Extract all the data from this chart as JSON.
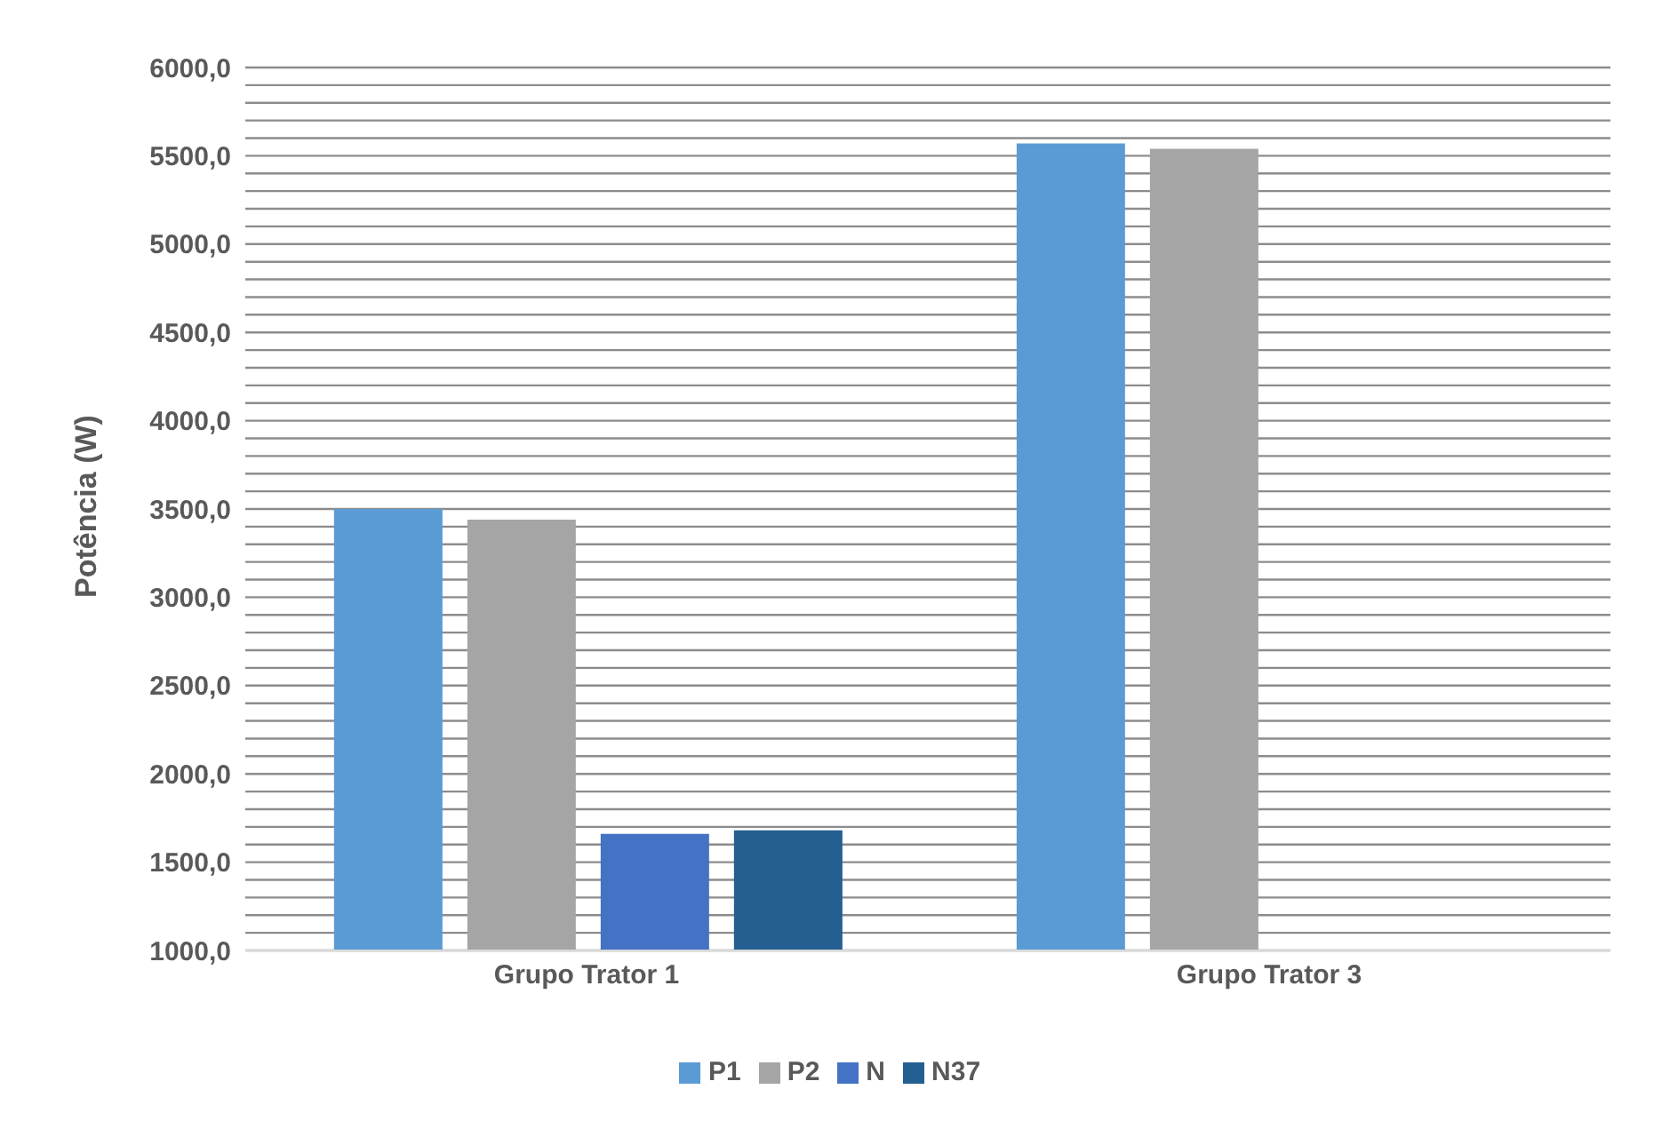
{
  "chart_data": {
    "type": "bar",
    "ylabel": "Potência (W)",
    "categories": [
      "Grupo Trator 1",
      "Grupo Trator 3"
    ],
    "series": [
      {
        "name": "P1",
        "color": "#5b9bd5",
        "values": [
          3500,
          5570
        ]
      },
      {
        "name": "P2",
        "color": "#a5a5a5",
        "values": [
          3440,
          5540
        ]
      },
      {
        "name": "N",
        "color": "#4472c4",
        "values": [
          1660,
          1000
        ]
      },
      {
        "name": "N37",
        "color": "#255e91",
        "values": [
          1680,
          1000
        ]
      }
    ],
    "ylim": [
      1000,
      6000
    ],
    "yticks": [
      {
        "value": 1000,
        "label": "1000,0"
      },
      {
        "value": 1100,
        "label": null
      },
      {
        "value": 1200,
        "label": null
      },
      {
        "value": 1300,
        "label": null
      },
      {
        "value": 1400,
        "label": null
      },
      {
        "value": 1500,
        "label": "1500,0"
      },
      {
        "value": 1600,
        "label": null
      },
      {
        "value": 1700,
        "label": null
      },
      {
        "value": 1800,
        "label": null
      },
      {
        "value": 1900,
        "label": null
      },
      {
        "value": 2000,
        "label": "2000,0"
      },
      {
        "value": 2100,
        "label": null
      },
      {
        "value": 2200,
        "label": null
      },
      {
        "value": 2300,
        "label": null
      },
      {
        "value": 2400,
        "label": null
      },
      {
        "value": 2500,
        "label": "2500,0"
      },
      {
        "value": 2600,
        "label": null
      },
      {
        "value": 2700,
        "label": null
      },
      {
        "value": 2800,
        "label": null
      },
      {
        "value": 2900,
        "label": null
      },
      {
        "value": 3000,
        "label": "3000,0"
      },
      {
        "value": 3100,
        "label": null
      },
      {
        "value": 3200,
        "label": null
      },
      {
        "value": 3300,
        "label": null
      },
      {
        "value": 3400,
        "label": null
      },
      {
        "value": 3500,
        "label": "3500,0"
      },
      {
        "value": 3600,
        "label": null
      },
      {
        "value": 3700,
        "label": null
      },
      {
        "value": 3800,
        "label": null
      },
      {
        "value": 3900,
        "label": null
      },
      {
        "value": 4000,
        "label": "4000,0"
      },
      {
        "value": 4100,
        "label": null
      },
      {
        "value": 4200,
        "label": null
      },
      {
        "value": 4300,
        "label": null
      },
      {
        "value": 4400,
        "label": null
      },
      {
        "value": 4500,
        "label": "4500,0"
      },
      {
        "value": 4600,
        "label": null
      },
      {
        "value": 4700,
        "label": null
      },
      {
        "value": 4800,
        "label": null
      },
      {
        "value": 4900,
        "label": null
      },
      {
        "value": 5000,
        "label": "5000,0"
      },
      {
        "value": 5100,
        "label": null
      },
      {
        "value": 5200,
        "label": null
      },
      {
        "value": 5300,
        "label": null
      },
      {
        "value": 5400,
        "label": null
      },
      {
        "value": 5500,
        "label": "5500,0"
      },
      {
        "value": 5600,
        "label": null
      },
      {
        "value": 5700,
        "label": null
      },
      {
        "value": 5800,
        "label": null
      },
      {
        "value": 5900,
        "label": null
      },
      {
        "value": 6000,
        "label": "6000,0"
      }
    ],
    "grid": "y",
    "legend": "bottom"
  }
}
